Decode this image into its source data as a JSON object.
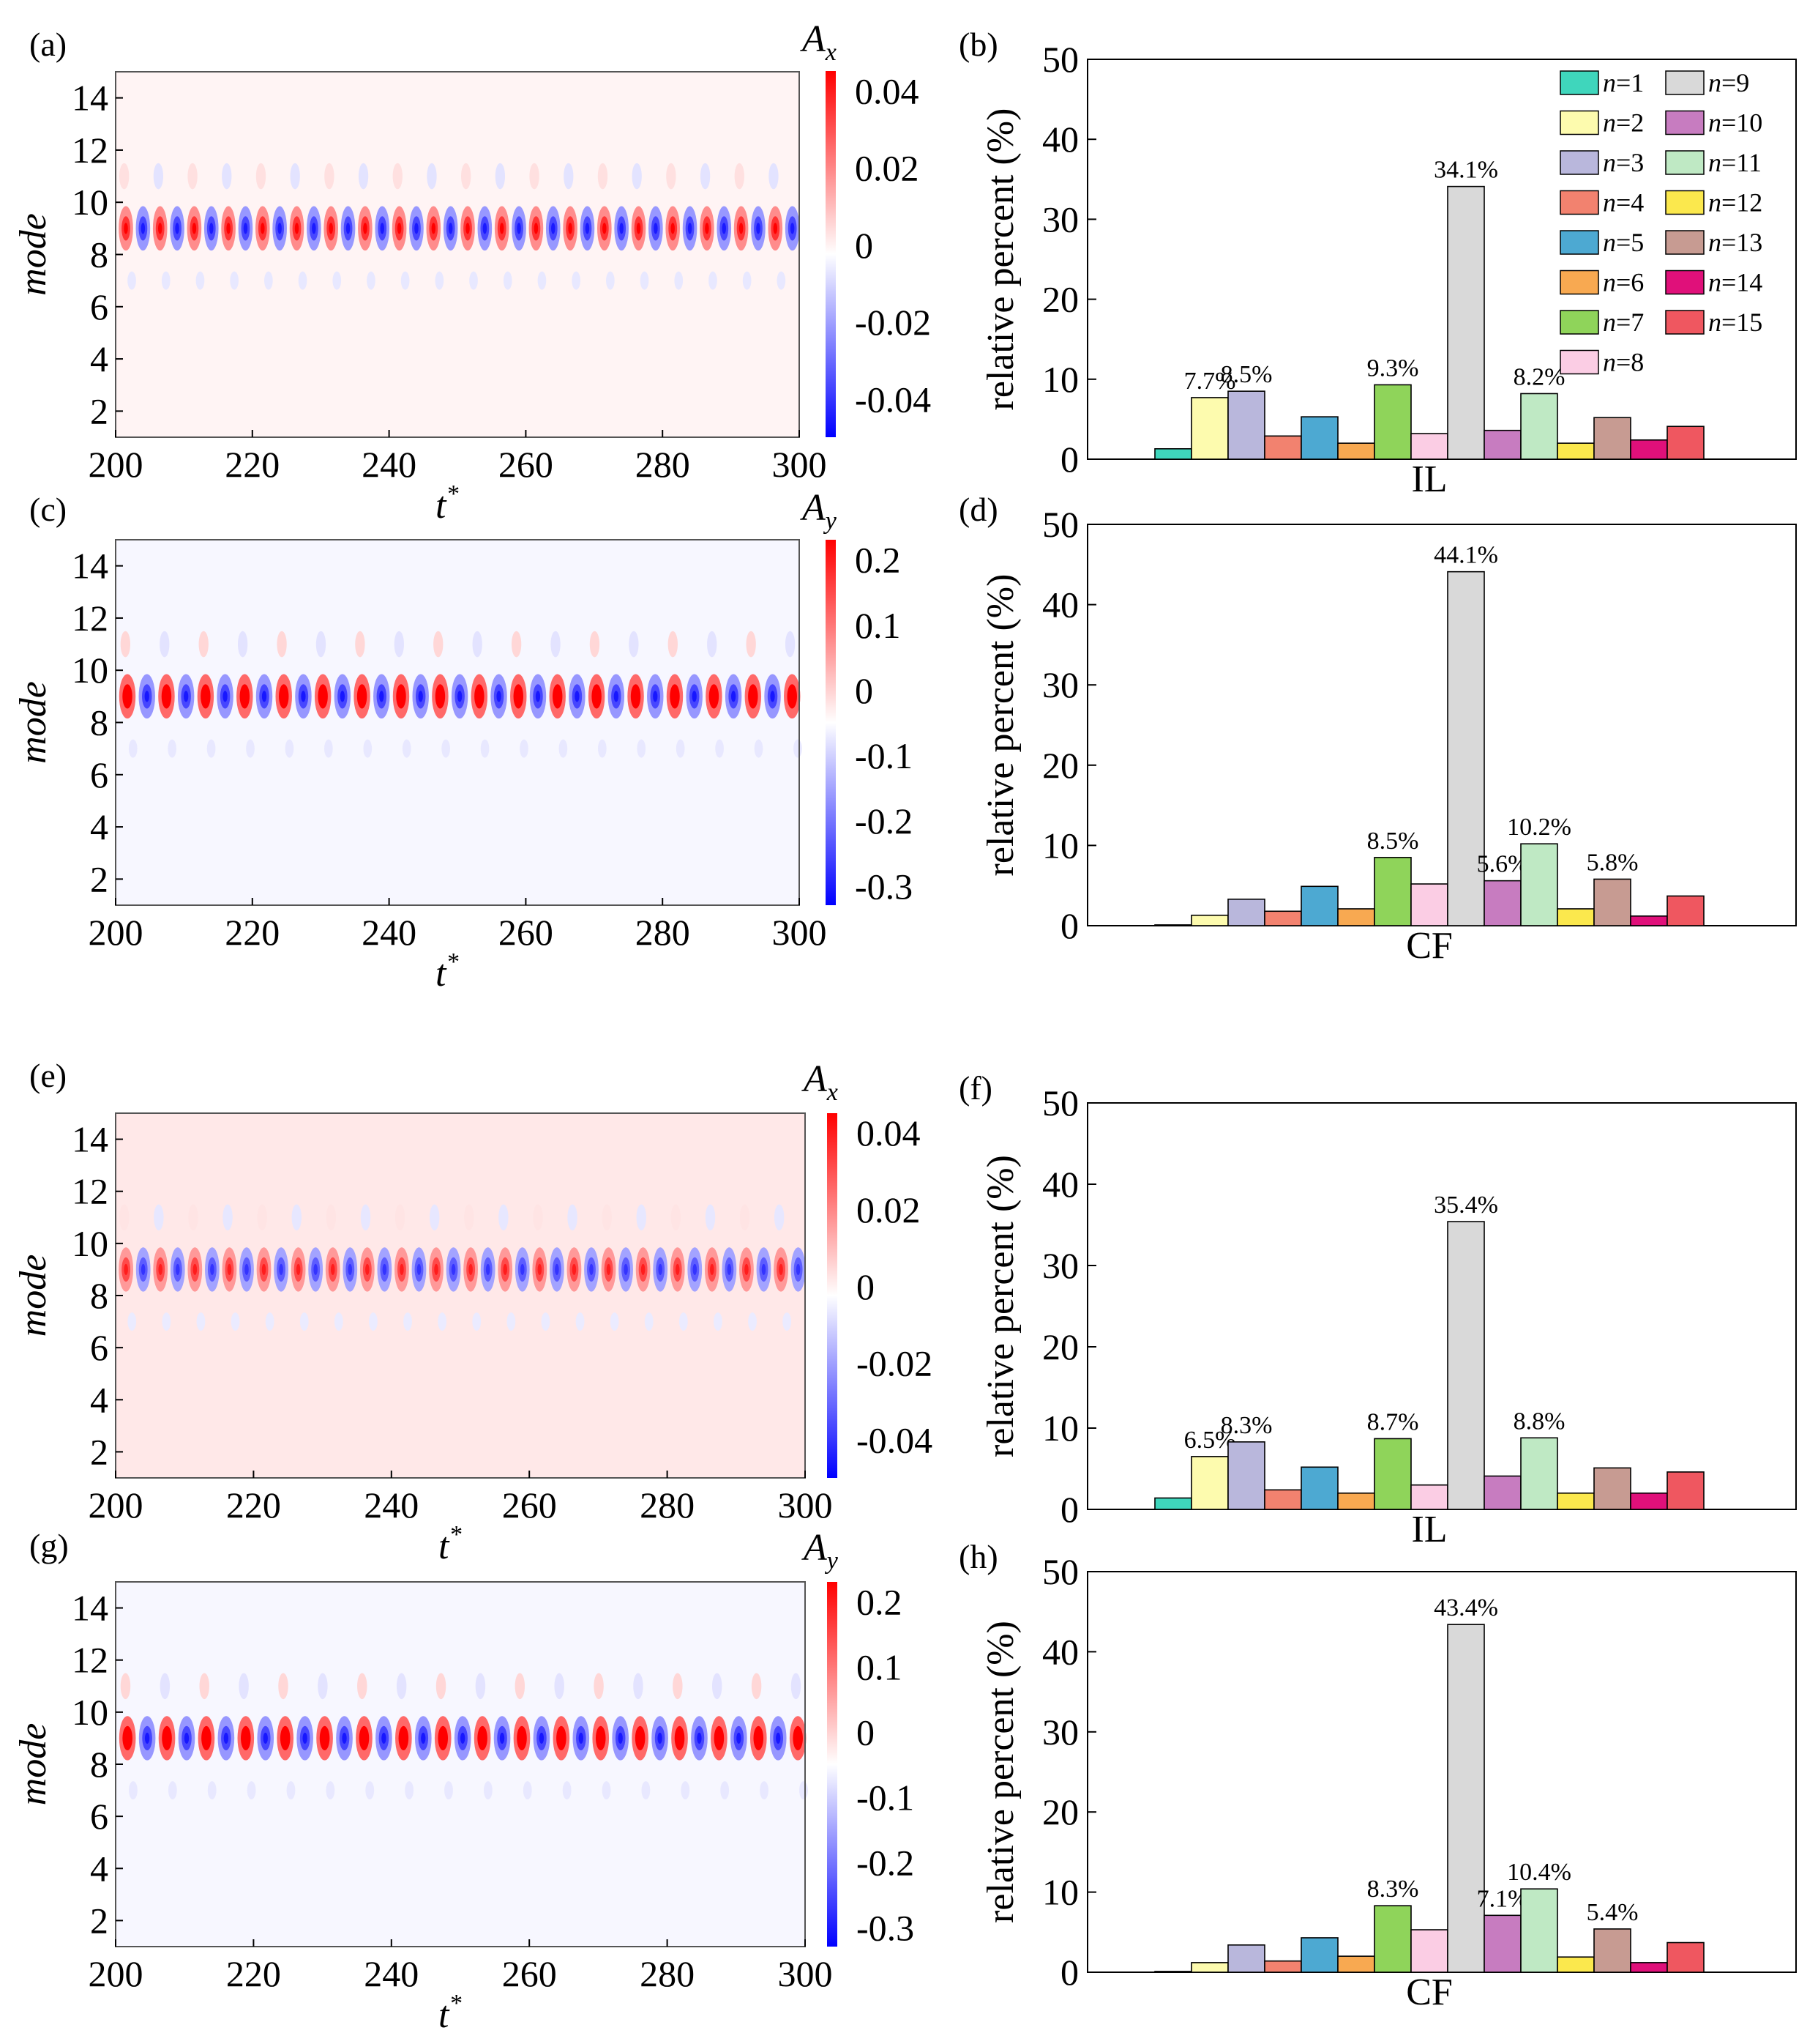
{
  "colors": {
    "n1": "#3fd6bc",
    "n2": "#fdfbae",
    "n3": "#b9b7dc",
    "n4": "#f2826f",
    "n5": "#4da9d2",
    "n6": "#f8a951",
    "n7": "#8fd45a",
    "n8": "#fbcde4",
    "n9": "#d9d9d9",
    "n10": "#c77cc0",
    "n11": "#bfe9c4",
    "n12": "#fbe84d",
    "n13": "#c79b92",
    "n14": "#e0107a",
    "n15": "#ef5760",
    "cmap_pos": "#ff0000",
    "cmap_neg": "#0000ff",
    "cmap_zero": "#ffffff"
  },
  "legend": [
    "n=1",
    "n=2",
    "n=3",
    "n=4",
    "n=5",
    "n=6",
    "n=7",
    "n=8",
    "n=9",
    "n=10",
    "n=11",
    "n=12",
    "n=13",
    "n=14",
    "n=15"
  ],
  "chart_data": [
    {
      "panel": "(a)",
      "type": "heatmap",
      "quantity": "A",
      "quantity_sub": "x",
      "xlabel": "t",
      "xlabel_sup": "*",
      "ylabel": "mode",
      "xlim": [
        200,
        300
      ],
      "ylim": [
        1,
        15
      ],
      "xticks": [
        "200",
        "220",
        "240",
        "260",
        "280",
        "300"
      ],
      "yticks": [
        "2",
        "4",
        "6",
        "8",
        "10",
        "12",
        "14"
      ],
      "colorbar": {
        "range": [
          -0.05,
          0.045
        ],
        "ticks": [
          0.04,
          0.02,
          0,
          -0.02,
          -0.04
        ],
        "labels": [
          "0.04",
          "0.02",
          "0",
          "-0.02",
          "-0.04"
        ]
      },
      "dominant_mode": 9,
      "oscillation_period": 2.5,
      "amplitude": 0.045,
      "background": 0.002
    },
    {
      "panel": "(b)",
      "type": "bar",
      "category": "IL",
      "ylabel": "relative percent (%)",
      "ylim": [
        0,
        50
      ],
      "yticks": [
        "0",
        "10",
        "20",
        "30",
        "40",
        "50"
      ],
      "values": [
        1.3,
        7.7,
        8.5,
        2.9,
        5.3,
        2.0,
        9.3,
        3.2,
        34.1,
        3.6,
        8.2,
        2.0,
        5.2,
        2.4,
        4.1
      ],
      "labels": {
        "2": "7.7%",
        "3": "8.5%",
        "7": "9.3%",
        "9": "34.1%",
        "11": "8.2%"
      }
    },
    {
      "panel": "(c)",
      "type": "heatmap",
      "quantity": "A",
      "quantity_sub": "y",
      "xlabel": "t",
      "xlabel_sup": "*",
      "ylabel": "mode",
      "xlim": [
        200,
        300
      ],
      "ylim": [
        1,
        15
      ],
      "xticks": [
        "200",
        "220",
        "240",
        "260",
        "280",
        "300"
      ],
      "yticks": [
        "2",
        "4",
        "6",
        "8",
        "10",
        "12",
        "14"
      ],
      "colorbar": {
        "range": [
          -0.33,
          0.23
        ],
        "ticks": [
          0.2,
          0.1,
          0,
          -0.1,
          -0.2,
          -0.3
        ],
        "labels": [
          "0.2",
          "0.1",
          "0",
          "-0.1",
          "-0.2",
          "-0.3"
        ]
      },
      "dominant_mode": 9,
      "oscillation_period": 2.86,
      "amplitude": 0.3,
      "background": -0.01
    },
    {
      "panel": "(d)",
      "type": "bar",
      "category": "CF",
      "ylabel": "relative percent (%)",
      "ylim": [
        0,
        50
      ],
      "yticks": [
        "0",
        "10",
        "20",
        "30",
        "40",
        "50"
      ],
      "values": [
        0.1,
        1.3,
        3.3,
        1.8,
        4.9,
        2.1,
        8.5,
        5.2,
        44.1,
        5.6,
        10.2,
        2.1,
        5.8,
        1.2,
        3.7
      ],
      "labels": {
        "7": "8.5%",
        "9": "44.1%",
        "10": "5.6%",
        "11": "10.2%",
        "13": "5.8%"
      }
    },
    {
      "panel": "(e)",
      "type": "heatmap",
      "quantity": "A",
      "quantity_sub": "x",
      "xlabel": "t",
      "xlabel_sup": "*",
      "ylabel": "mode",
      "xlim": [
        200,
        300
      ],
      "ylim": [
        1,
        15
      ],
      "xticks": [
        "200",
        "220",
        "240",
        "260",
        "280",
        "300"
      ],
      "yticks": [
        "2",
        "4",
        "6",
        "8",
        "10",
        "12",
        "14"
      ],
      "colorbar": {
        "range": [
          -0.05,
          0.045
        ],
        "ticks": [
          0.04,
          0.02,
          0,
          -0.02,
          -0.04
        ],
        "labels": [
          "0.04",
          "0.02",
          "0",
          "-0.02",
          "-0.04"
        ]
      },
      "dominant_mode": 9,
      "oscillation_period": 2.5,
      "amplitude": 0.04,
      "background": 0.004
    },
    {
      "panel": "(f)",
      "type": "bar",
      "category": "IL",
      "ylabel": "relative percent (%)",
      "ylim": [
        0,
        50
      ],
      "yticks": [
        "0",
        "10",
        "20",
        "30",
        "40",
        "50"
      ],
      "values": [
        1.4,
        6.5,
        8.3,
        2.4,
        5.2,
        2.0,
        8.7,
        3.0,
        35.4,
        4.1,
        8.8,
        2.0,
        5.1,
        2.0,
        4.6
      ],
      "labels": {
        "2": "6.5%",
        "3": "8.3%",
        "7": "8.7%",
        "9": "35.4%",
        "11": "8.8%"
      }
    },
    {
      "panel": "(g)",
      "type": "heatmap",
      "quantity": "A",
      "quantity_sub": "y",
      "xlabel": "t",
      "xlabel_sup": "*",
      "ylabel": "mode",
      "xlim": [
        200,
        300
      ],
      "ylim": [
        1,
        15
      ],
      "xticks": [
        "200",
        "220",
        "240",
        "260",
        "280",
        "300"
      ],
      "yticks": [
        "2",
        "4",
        "6",
        "8",
        "10",
        "12",
        "14"
      ],
      "colorbar": {
        "range": [
          -0.33,
          0.23
        ],
        "ticks": [
          0.2,
          0.1,
          0,
          -0.1,
          -0.2,
          -0.3
        ],
        "labels": [
          "0.2",
          "0.1",
          "0",
          "-0.1",
          "-0.2",
          "-0.3"
        ]
      },
      "dominant_mode": 9,
      "oscillation_period": 2.86,
      "amplitude": 0.3,
      "background": -0.01
    },
    {
      "panel": "(h)",
      "type": "bar",
      "category": "CF",
      "ylabel": "relative percent (%)",
      "ylim": [
        0,
        50
      ],
      "yticks": [
        "0",
        "10",
        "20",
        "30",
        "40",
        "50"
      ],
      "values": [
        0.1,
        1.2,
        3.4,
        1.4,
        4.3,
        2.0,
        8.3,
        5.3,
        43.4,
        7.1,
        10.4,
        1.9,
        5.4,
        1.2,
        3.7
      ],
      "labels": {
        "7": "8.3%",
        "9": "43.4%",
        "10": "7.1%",
        "11": "10.4%",
        "13": "5.4%"
      }
    }
  ]
}
